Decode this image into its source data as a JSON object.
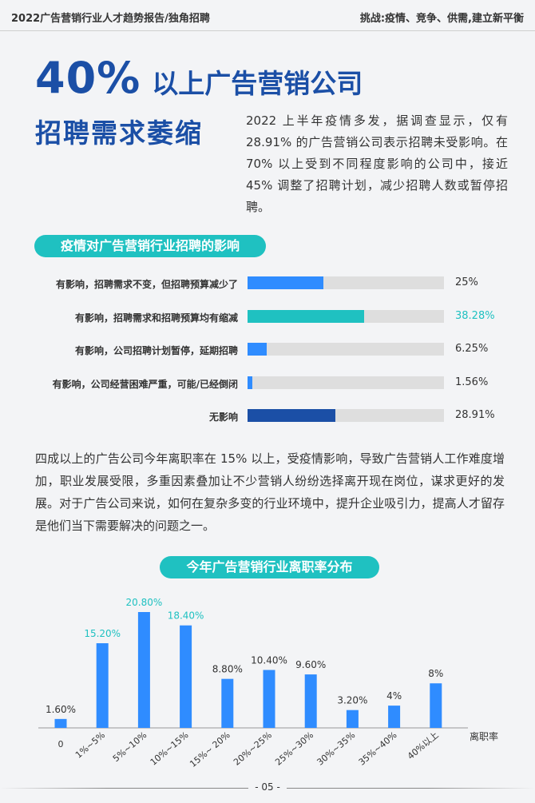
{
  "header": {
    "left": "2022广告营销行业人才趋势报告/独角招聘",
    "right": "挑战:疫情、竞争、供需,建立新平衡"
  },
  "headline": {
    "pct": "40%",
    "line1": "以上广告营销公司",
    "line2": "招聘需求萎缩"
  },
  "intro": "2022 上半年疫情多发，据调查显示，仅有 28.91% 的广告营销公司表示招聘未受影响。在 70% 以上受到不同程度影响的公司中，接近 45% 调整了招聘计划，减少招聘人数或暂停招聘。",
  "impact": {
    "title": "疫情对广告营销行业招聘的影响",
    "rows": [
      {
        "label": "有影响，招聘需求不变，但招聘预算减少了",
        "value": 25,
        "display": "25%",
        "color": "#2f8cff",
        "value_color": "#333333"
      },
      {
        "label": "有影响，招聘需求和招聘预算均有缩减",
        "value": 38.28,
        "display": "38.28%",
        "color": "#1fc1c1",
        "value_color": "#1fc1c1"
      },
      {
        "label": "有影响，公司招聘计划暂停，延期招聘",
        "value": 6.25,
        "display": "6.25%",
        "color": "#2f8cff",
        "value_color": "#333333"
      },
      {
        "label": "有影响，公司经营困难严重，可能/已经倒闭",
        "value": 1.56,
        "display": "1.56%",
        "color": "#2f8cff",
        "value_color": "#333333"
      },
      {
        "label": "无影响",
        "value": 28.91,
        "display": "28.91%",
        "color": "#1b4fa6",
        "value_color": "#333333"
      }
    ]
  },
  "para2": "四成以上的广告公司今年离职率在 15% 以上，受疫情影响，导致广告营销人工作难度增加，职业发展受限，多重因素叠加让不少营销人纷纷选择离开现在岗位，谋求更好的发展。对于广告公司来说，如何在复杂多变的行业环境中，提升企业吸引力，提高人才留存是他们当下需要解决的问题之一。",
  "turnover_title": "今年广告营销行业离职率分布",
  "chart_data": {
    "type": "bar",
    "categories": [
      "0",
      "1%~5%",
      "5%~10%",
      "10%~15%",
      "15%~ 20%",
      "20%~25%",
      "25%~30%",
      "30%~35%",
      "35%~40%",
      "40%以上"
    ],
    "values": [
      1.6,
      15.2,
      20.8,
      18.4,
      8.8,
      10.4,
      9.6,
      3.2,
      4,
      8
    ],
    "labels": [
      "1.60%",
      "15.20%",
      "20.80%",
      "18.40%",
      "8.80%",
      "10.40%",
      "9.60%",
      "3.20%",
      "4%",
      "8%"
    ],
    "highlight": [
      false,
      true,
      true,
      true,
      false,
      false,
      false,
      false,
      false,
      false
    ],
    "xlabel": "离职率",
    "colors": {
      "bar": "#2f8cff",
      "highlight_label": "#1fc1c1",
      "label": "#333333"
    }
  },
  "footer": "- 05 -"
}
